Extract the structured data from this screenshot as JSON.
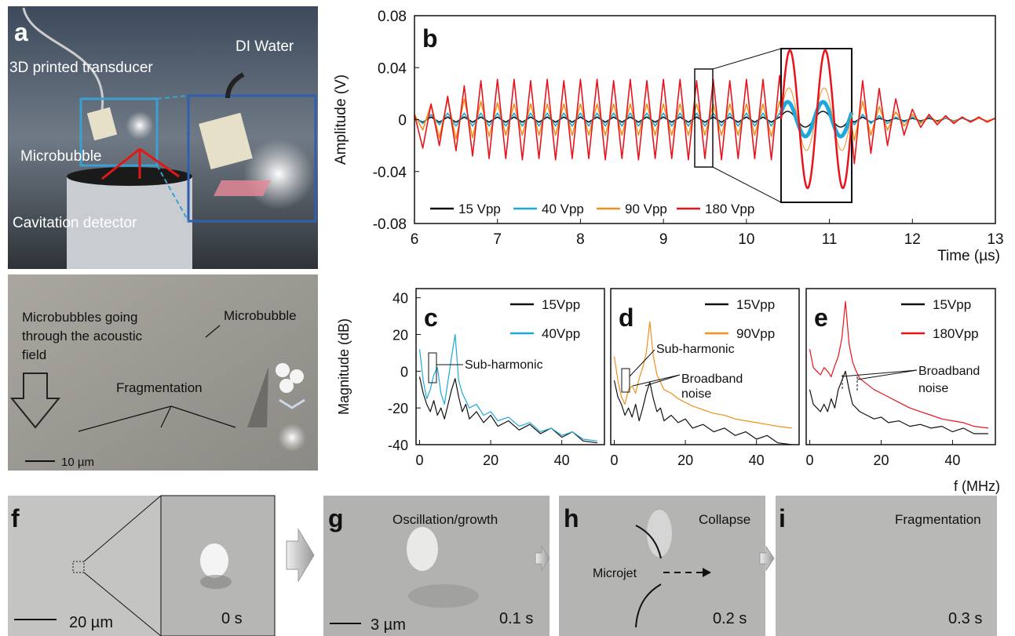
{
  "chart_data": [
    {
      "type": "line",
      "panel_label": "b",
      "y_label": "Amplitude (V)",
      "x_label": "Time (µs)",
      "x": [
        6.0,
        6.1,
        6.2,
        6.3,
        6.4,
        6.5,
        6.6,
        6.7,
        6.8,
        6.9,
        7.0,
        7.1,
        7.2,
        7.3,
        7.4,
        7.5,
        7.6,
        7.7,
        7.8,
        7.9,
        8.0,
        8.1,
        8.2,
        8.3,
        8.4,
        8.5,
        8.6,
        8.7,
        8.8,
        8.9,
        9.0,
        9.1,
        9.2,
        9.3,
        9.4,
        9.5,
        9.6,
        9.7,
        9.8,
        9.9,
        10.0,
        10.1,
        10.2,
        10.3,
        10.4,
        10.5,
        10.6,
        10.7,
        10.8,
        10.9,
        11.0,
        11.1,
        11.2,
        11.3,
        11.4,
        11.5,
        11.6,
        11.7,
        11.8,
        11.9,
        12.0,
        12.1,
        12.2,
        12.3,
        12.4,
        12.5,
        12.6,
        12.7,
        12.8,
        12.9,
        13.0
      ],
      "xlim": [
        6,
        13
      ],
      "ylim": [
        -0.08,
        0.08
      ],
      "xticks": [
        6,
        7,
        8,
        9,
        10,
        11,
        12,
        13
      ],
      "yticks": [
        -0.08,
        -0.04,
        0,
        0.04,
        0.08
      ],
      "series": [
        {
          "name": "15 Vpp",
          "color": "#111111",
          "values": [
            0.001,
            -0.002,
            0.002,
            -0.002,
            0.002,
            -0.002,
            0.002,
            -0.002,
            0.002,
            -0.002,
            0.002,
            -0.002,
            0.002,
            -0.002,
            0.002,
            -0.002,
            0.002,
            -0.002,
            0.002,
            -0.002,
            0.002,
            -0.002,
            0.002,
            -0.002,
            0.002,
            -0.002,
            0.002,
            -0.002,
            0.002,
            -0.002,
            0.002,
            -0.002,
            0.002,
            -0.002,
            0.002,
            -0.002,
            0.002,
            -0.002,
            0.002,
            -0.002,
            0.002,
            -0.002,
            0.002,
            -0.002,
            0.002,
            -0.002,
            0.002,
            -0.002,
            0.002,
            -0.002,
            0.002,
            -0.002,
            0.002,
            -0.002,
            0.002,
            -0.002,
            0.001,
            -0.001,
            0.001,
            -0.001,
            0.001,
            -0.001,
            0.001,
            -0.001,
            0.001,
            -0.001,
            0.001,
            -0.001,
            0.001,
            -0.001,
            0.001
          ]
        },
        {
          "name": "40 Vpp",
          "color": "#1fa8dc",
          "values": [
            0.002,
            -0.003,
            0.004,
            -0.004,
            0.005,
            -0.005,
            0.005,
            -0.005,
            0.005,
            -0.005,
            0.005,
            -0.005,
            0.005,
            -0.005,
            0.005,
            -0.005,
            0.005,
            -0.005,
            0.005,
            -0.005,
            0.005,
            -0.005,
            0.005,
            -0.005,
            0.005,
            -0.005,
            0.005,
            -0.005,
            0.005,
            -0.005,
            0.005,
            -0.005,
            0.005,
            -0.005,
            0.005,
            -0.005,
            0.005,
            -0.005,
            0.005,
            -0.005,
            0.005,
            -0.005,
            0.005,
            -0.005,
            0.005,
            -0.005,
            0.005,
            -0.005,
            0.005,
            -0.005,
            0.005,
            -0.005,
            0.005,
            -0.004,
            0.004,
            -0.003,
            0.003,
            -0.003,
            0.002,
            -0.002,
            0.002,
            -0.002,
            0.002,
            -0.002,
            0.001,
            -0.001,
            0.001,
            -0.001,
            0.001,
            -0.001,
            0.001
          ]
        },
        {
          "name": "90 Vpp",
          "color": "#f0901e",
          "values": [
            0.004,
            -0.008,
            0.012,
            -0.014,
            0.016,
            -0.015,
            0.016,
            -0.014,
            0.014,
            -0.013,
            0.013,
            -0.012,
            0.012,
            -0.012,
            0.012,
            -0.012,
            0.012,
            -0.012,
            0.012,
            -0.012,
            0.012,
            -0.012,
            0.012,
            -0.012,
            0.012,
            -0.012,
            0.012,
            -0.012,
            0.012,
            -0.012,
            0.012,
            -0.012,
            0.012,
            -0.012,
            0.012,
            -0.012,
            0.012,
            -0.012,
            0.012,
            -0.012,
            0.012,
            -0.012,
            0.012,
            -0.013,
            0.014,
            -0.016,
            0.018,
            -0.02,
            0.02,
            -0.02,
            0.02,
            -0.018,
            0.018,
            -0.016,
            0.014,
            -0.012,
            0.01,
            -0.008,
            0.006,
            -0.005,
            0.004,
            -0.003,
            0.003,
            -0.002,
            0.002,
            -0.002,
            0.002,
            -0.002,
            0.001,
            -0.001,
            0.001
          ]
        },
        {
          "name": "180 Vpp",
          "color": "#e8141c",
          "values": [
            0.004,
            -0.022,
            0.012,
            -0.02,
            0.018,
            -0.024,
            0.026,
            -0.028,
            0.03,
            -0.03,
            0.031,
            -0.03,
            0.031,
            -0.031,
            0.03,
            -0.03,
            0.031,
            -0.031,
            0.03,
            -0.03,
            0.031,
            -0.03,
            0.031,
            -0.031,
            0.03,
            -0.03,
            0.031,
            -0.031,
            0.03,
            -0.03,
            0.031,
            -0.03,
            0.031,
            -0.031,
            0.03,
            -0.03,
            0.031,
            -0.031,
            0.03,
            -0.03,
            0.031,
            -0.03,
            0.031,
            -0.031,
            0.034,
            -0.038,
            0.044,
            -0.05,
            0.05,
            -0.05,
            0.05,
            -0.048,
            0.04,
            -0.034,
            0.03,
            -0.026,
            0.024,
            -0.02,
            0.016,
            -0.012,
            0.008,
            -0.006,
            0.004,
            -0.004,
            0.003,
            -0.003,
            0.002,
            -0.002,
            0.002,
            -0.002,
            0.001
          ]
        }
      ]
    },
    {
      "type": "line",
      "panel_label": "c",
      "y_label": "Magnitude (dB)",
      "x": [
        0,
        1,
        2,
        3,
        4,
        5,
        6,
        7,
        8,
        9,
        10,
        11,
        12,
        13,
        14,
        16,
        18,
        20,
        22,
        25,
        28,
        31,
        34,
        37,
        40,
        43,
        46,
        50
      ],
      "xlim": [
        -1,
        52
      ],
      "ylim": [
        -40,
        45
      ],
      "xticks": [
        0,
        20,
        40
      ],
      "yticks": [
        -40,
        -20,
        0,
        20,
        40
      ],
      "annotations": [
        "Sub-harmonic"
      ],
      "series": [
        {
          "name": "15Vpp",
          "color": "#111111",
          "values": [
            -3,
            -12,
            -18,
            -22,
            -16,
            -24,
            -20,
            -26,
            -18,
            -10,
            -4,
            -14,
            -22,
            -18,
            -26,
            -22,
            -28,
            -24,
            -30,
            -27,
            -32,
            -29,
            -34,
            -31,
            -36,
            -33,
            -38,
            -39
          ]
        },
        {
          "name": "40Vpp",
          "color": "#1fa8dc",
          "values": [
            12,
            -5,
            -15,
            -10,
            -2,
            2,
            -12,
            -18,
            -5,
            8,
            20,
            -5,
            -12,
            -16,
            -20,
            -18,
            -24,
            -22,
            -27,
            -25,
            -30,
            -28,
            -33,
            -31,
            -35,
            -33,
            -37,
            -38
          ]
        }
      ]
    },
    {
      "type": "line",
      "panel_label": "d",
      "x": [
        0,
        1,
        2,
        3,
        4,
        5,
        6,
        7,
        8,
        9,
        10,
        11,
        12,
        13,
        14,
        16,
        18,
        20,
        22,
        25,
        28,
        31,
        34,
        37,
        40,
        43,
        46,
        50
      ],
      "xlim": [
        -1,
        52
      ],
      "ylim": [
        -40,
        45
      ],
      "xticks": [
        0,
        20,
        40
      ],
      "annotations": [
        "Sub-harmonic",
        "Broadband",
        "noise"
      ],
      "series": [
        {
          "name": "15Vpp",
          "color": "#111111",
          "values": [
            -5,
            -14,
            -18,
            -24,
            -20,
            -25,
            -18,
            -27,
            -20,
            -12,
            -6,
            -15,
            -22,
            -20,
            -27,
            -24,
            -28,
            -26,
            -31,
            -29,
            -33,
            -31,
            -35,
            -33,
            -37,
            -35,
            -39,
            -40
          ]
        },
        {
          "name": "90Vpp",
          "color": "#f0901e",
          "values": [
            8,
            -5,
            -14,
            -18,
            -10,
            -8,
            -12,
            -4,
            2,
            10,
            27,
            8,
            -2,
            -6,
            -10,
            -12,
            -15,
            -17,
            -19,
            -21,
            -23,
            -24,
            -26,
            -27,
            -28,
            -29,
            -30,
            -31
          ]
        }
      ]
    },
    {
      "type": "line",
      "panel_label": "e",
      "x_label": "f (MHz)",
      "x": [
        0,
        1,
        2,
        3,
        4,
        5,
        6,
        7,
        8,
        9,
        10,
        11,
        12,
        13,
        14,
        16,
        18,
        20,
        22,
        25,
        28,
        31,
        34,
        37,
        40,
        43,
        46,
        50
      ],
      "xlim": [
        -1,
        52
      ],
      "ylim": [
        -40,
        45
      ],
      "xticks": [
        0,
        20,
        40
      ],
      "annotations": [
        "Broadband",
        "noise"
      ],
      "series": [
        {
          "name": "15Vpp",
          "color": "#111111",
          "values": [
            -10,
            -18,
            -20,
            -22,
            -18,
            -22,
            -15,
            -20,
            -10,
            -5,
            0,
            -10,
            -18,
            -20,
            -22,
            -24,
            -26,
            -25,
            -28,
            -27,
            -30,
            -29,
            -31,
            -30,
            -33,
            -31,
            -34,
            -34
          ]
        },
        {
          "name": "180Vpp",
          "color": "#e8141c",
          "values": [
            12,
            2,
            0,
            -2,
            2,
            0,
            -3,
            3,
            8,
            18,
            38,
            15,
            5,
            0,
            -4,
            -7,
            -10,
            -12,
            -14,
            -17,
            -20,
            -22,
            -24,
            -26,
            -27,
            -28,
            -30,
            -31
          ]
        }
      ]
    }
  ],
  "panel_a": {
    "label": "a",
    "medium": "DI Water",
    "transducer": "3D printed transducer",
    "bubble": "Microbubble",
    "detector": "Cavitation detector",
    "flow_lines": [
      "Microbubbles  going",
      "through the acoustic",
      "field"
    ],
    "bubble2": "Microbubble",
    "fragmentation": "Fragmentation",
    "scale": "10 µm"
  },
  "panel_f": {
    "label": "f",
    "scale": "20 µm",
    "time": "0 s"
  },
  "panel_g": {
    "label": "g",
    "title": "Oscillation/growth",
    "scale": "3 µm",
    "time": "0.1 s"
  },
  "panel_h": {
    "label": "h",
    "title": "Collapse",
    "microjet": "Microjet",
    "time": "0.2 s"
  },
  "panel_i": {
    "label": "i",
    "title": "Fragmentation",
    "time": "0.3 s"
  }
}
